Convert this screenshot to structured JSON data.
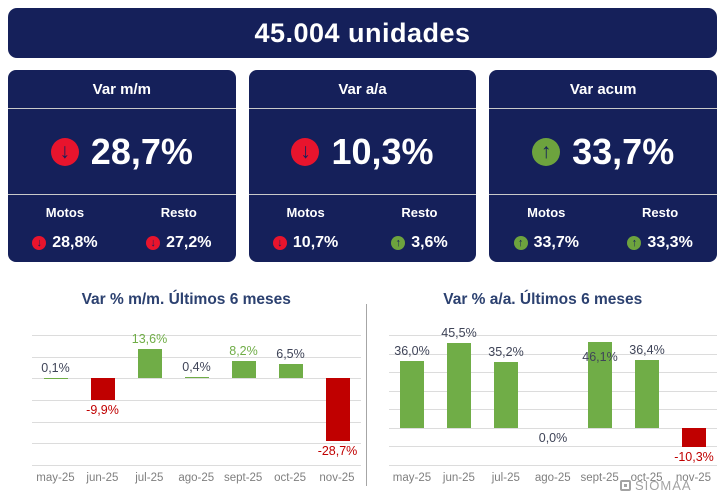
{
  "header": {
    "title": "45.004 unidades"
  },
  "colors": {
    "navy": "#15205a",
    "icon_red": "#e8142d",
    "icon_green": "#6da33e",
    "bar_green": "#70ad47",
    "bar_red": "#c00000",
    "label_dark": "#3f4458",
    "label_red": "#c00000",
    "label_green": "#70ad47",
    "grid": "#dcdcdc",
    "axis_text": "#7f7f7f",
    "title_text": "#2c4170",
    "watermark_gray": "#a3a3a3",
    "background": "#ffffff"
  },
  "icons": {
    "down": {
      "name": "down-arrow-icon",
      "glyph": "↓"
    },
    "up": {
      "name": "up-arrow-icon",
      "glyph": "↑"
    }
  },
  "kpi_cards": [
    {
      "title": "Var m/m",
      "value": "28,7%",
      "direction": "down",
      "sub": [
        {
          "label": "Motos",
          "value": "28,8%",
          "direction": "down"
        },
        {
          "label": "Resto",
          "value": "27,2%",
          "direction": "down"
        }
      ]
    },
    {
      "title": "Var a/a",
      "value": "10,3%",
      "direction": "down",
      "sub": [
        {
          "label": "Motos",
          "value": "10,7%",
          "direction": "down"
        },
        {
          "label": "Resto",
          "value": "3,6%",
          "direction": "up"
        }
      ]
    },
    {
      "title": "Var acum",
      "value": "33,7%",
      "direction": "up",
      "sub": [
        {
          "label": "Motos",
          "value": "33,7%",
          "direction": "up"
        },
        {
          "label": "Resto",
          "value": "33,3%",
          "direction": "up"
        }
      ]
    }
  ],
  "chart_data": [
    {
      "type": "bar",
      "title": "Var % m/m. Últimos 6 meses",
      "categories": [
        "may-25",
        "jun-25",
        "jul-25",
        "ago-25",
        "sept-25",
        "oct-25",
        "nov-25"
      ],
      "values": [
        0.1,
        -9.9,
        13.6,
        0.4,
        8.2,
        6.5,
        -28.7
      ],
      "labels": [
        "0,1%",
        "-9,9%",
        "13,6%",
        "0,4%",
        "8,2%",
        "6,5%",
        "-28,7%"
      ],
      "label_colors": [
        "dark",
        "red",
        "green",
        "dark",
        "green",
        "dark",
        "red"
      ],
      "label_inside": [
        false,
        false,
        false,
        false,
        false,
        false,
        false
      ],
      "ylim": [
        -40,
        20
      ],
      "grid_step": 10,
      "grid": true,
      "legend": false,
      "xlabel": "",
      "ylabel": ""
    },
    {
      "type": "bar",
      "title": "Var % a/a. Últimos 6 meses",
      "categories": [
        "may-25",
        "jun-25",
        "jul-25",
        "ago-25",
        "sept-25",
        "oct-25",
        "nov-25"
      ],
      "values": [
        36.0,
        45.5,
        35.2,
        0.0,
        46.1,
        36.4,
        -10.3
      ],
      "labels": [
        "36,0%",
        "45,5%",
        "35,2%",
        "0,0%",
        "46,1%",
        "36,4%",
        "-10,3%"
      ],
      "label_colors": [
        "dark",
        "dark",
        "dark",
        "dark",
        "dark",
        "dark",
        "red"
      ],
      "label_inside": [
        false,
        false,
        false,
        false,
        true,
        false,
        false
      ],
      "ylim": [
        -20,
        50
      ],
      "grid_step": 10,
      "grid": true,
      "legend": false,
      "xlabel": "",
      "ylabel": ""
    }
  ],
  "watermark": "SIOMAA"
}
